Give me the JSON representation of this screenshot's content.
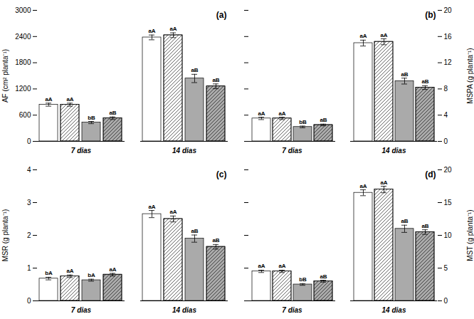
{
  "chart_data": [
    {
      "type": "bar",
      "title": "(a)",
      "categories": [
        "7 dias",
        "14 dias"
      ],
      "ylabel": "AF (cm² planta⁻¹)",
      "ylim": [
        0,
        3000
      ],
      "yticks": [
        0,
        600,
        1200,
        1800,
        2400,
        3000
      ],
      "series": [
        {
          "color": "white",
          "values": [
            840,
            2380
          ],
          "errors": [
            35,
            55
          ],
          "labels": [
            "aA",
            "aA"
          ]
        },
        {
          "color": "white",
          "values": [
            840,
            2430
          ],
          "errors": [
            35,
            55
          ],
          "labels": [
            "aA",
            "aA"
          ]
        },
        {
          "color": "#aaaaaa",
          "values": [
            430,
            1440
          ],
          "errors": [
            25,
            95
          ],
          "labels": [
            "bB",
            "aB"
          ]
        },
        {
          "color": "#aaaaaa",
          "values": [
            530,
            1260
          ],
          "errors": [
            30,
            55
          ],
          "labels": [
            "aB",
            "aB"
          ]
        }
      ]
    },
    {
      "type": "bar",
      "title": "(b)",
      "categories": [
        "7 dias",
        "14 dias"
      ],
      "y2label": "MSPA (g planta⁻¹)",
      "y2lim": [
        0,
        20
      ],
      "y2ticks": [
        0,
        4,
        8,
        12,
        16,
        20
      ],
      "series": [
        {
          "color": "white",
          "axis": "y2",
          "values": [
            3.5,
            15.0
          ],
          "errors": [
            0.18,
            0.45
          ],
          "labels": [
            "aA",
            "aA"
          ]
        },
        {
          "color": "white",
          "axis": "y2",
          "values": [
            3.5,
            15.2
          ],
          "errors": [
            0.18,
            0.45
          ],
          "labels": [
            "aA",
            "aA"
          ]
        },
        {
          "color": "#aaaaaa",
          "axis": "y2",
          "values": [
            2.2,
            9.2
          ],
          "errors": [
            0.13,
            0.45
          ],
          "labels": [
            "bB",
            "aB"
          ]
        },
        {
          "color": "#aaaaaa",
          "axis": "y2",
          "values": [
            2.5,
            8.2
          ],
          "errors": [
            0.13,
            0.28
          ],
          "labels": [
            "aB",
            "aB"
          ]
        }
      ]
    },
    {
      "type": "bar",
      "title": "(c)",
      "categories": [
        "7 dias",
        "14 dias"
      ],
      "ylabel": "MSR (g planta⁻¹)",
      "ylim": [
        0,
        4
      ],
      "yticks": [
        0,
        1,
        2,
        3,
        4
      ],
      "series": [
        {
          "color": "white",
          "values": [
            0.68,
            2.65
          ],
          "errors": [
            0.04,
            0.11
          ],
          "labels": [
            "bA",
            "aA"
          ]
        },
        {
          "color": "white",
          "values": [
            0.75,
            2.5
          ],
          "errors": [
            0.04,
            0.09
          ],
          "labels": [
            "aA",
            "aA"
          ]
        },
        {
          "color": "#aaaaaa",
          "values": [
            0.63,
            1.9
          ],
          "errors": [
            0.03,
            0.11
          ],
          "labels": [
            "bA",
            "aB"
          ]
        },
        {
          "color": "#aaaaaa",
          "values": [
            0.8,
            1.65
          ],
          "errors": [
            0.04,
            0.07
          ],
          "labels": [
            "aA",
            "aB"
          ]
        }
      ]
    },
    {
      "type": "bar",
      "title": "(d)",
      "categories": [
        "7 dias",
        "14 dias"
      ],
      "y2label": "MST (g planta⁻¹)",
      "y2lim": [
        0,
        20
      ],
      "y2ticks": [
        0,
        5,
        10,
        15,
        20
      ],
      "series": [
        {
          "color": "white",
          "axis": "y2",
          "values": [
            4.5,
            16.5
          ],
          "errors": [
            0.18,
            0.45
          ],
          "labels": [
            "aA",
            "aA"
          ]
        },
        {
          "color": "white",
          "axis": "y2",
          "values": [
            4.5,
            17.0
          ],
          "errors": [
            0.18,
            0.5
          ],
          "labels": [
            "aA",
            "aA"
          ]
        },
        {
          "color": "#aaaaaa",
          "axis": "y2",
          "values": [
            2.5,
            11.0
          ],
          "errors": [
            0.13,
            0.55
          ],
          "labels": [
            "bB",
            "aB"
          ]
        },
        {
          "color": "#aaaaaa",
          "axis": "y2",
          "values": [
            3.0,
            10.5
          ],
          "errors": [
            0.15,
            0.35
          ],
          "labels": [
            "aB",
            "aB"
          ]
        }
      ]
    }
  ]
}
